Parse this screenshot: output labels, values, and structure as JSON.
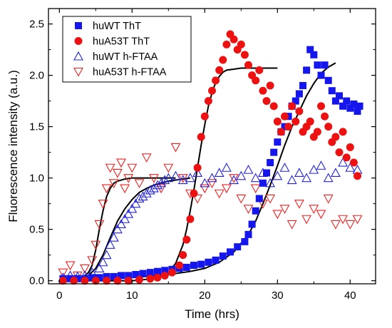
{
  "chart_data": {
    "type": "scatter",
    "xlabel": "Time (hrs)",
    "ylabel": "Fluorescence intensity (a.u.)",
    "xlim": [
      -1.5,
      43.5
    ],
    "ylim": [
      -0.03,
      2.65
    ],
    "xticks": [
      0,
      10,
      20,
      30,
      40
    ],
    "yticks": [
      0.0,
      0.5,
      1.0,
      1.5,
      2.0,
      2.5
    ],
    "xtick_labels": [
      "0",
      "10",
      "20",
      "30",
      "40"
    ],
    "ytick_labels": [
      "0.0",
      "0.5",
      "1.0",
      "1.5",
      "2.0",
      "2.5"
    ],
    "legend_position": "top-left",
    "grid": false,
    "series": [
      {
        "name": "huWT ThT",
        "marker": "square",
        "color": "#1515ee",
        "x": [
          0.5,
          1.5,
          2.5,
          3.5,
          4.5,
          5.5,
          6.5,
          7.5,
          8.5,
          9.5,
          10.5,
          11.5,
          12.5,
          13.5,
          14.5,
          15.5,
          16.5,
          17.5,
          18.5,
          19.5,
          20.5,
          21.5,
          22.5,
          23.5,
          24.5,
          25.5,
          26,
          26.5,
          27,
          27.5,
          28,
          28.5,
          29,
          29.5,
          30,
          30.5,
          31,
          31.5,
          32,
          32.5,
          33,
          33.5,
          34,
          34.5,
          35,
          35.5,
          36,
          36.5,
          37,
          37.5,
          38,
          38.5,
          39,
          39.5,
          40,
          40.5,
          41,
          41.3
        ],
        "y": [
          0.02,
          0.02,
          0.02,
          0.02,
          0.03,
          0.03,
          0.04,
          0.04,
          0.05,
          0.05,
          0.06,
          0.07,
          0.08,
          0.09,
          0.1,
          0.11,
          0.12,
          0.13,
          0.15,
          0.16,
          0.18,
          0.2,
          0.24,
          0.28,
          0.33,
          0.38,
          0.45,
          0.55,
          0.68,
          0.8,
          0.95,
          1.05,
          1.15,
          1.25,
          1.35,
          1.45,
          1.5,
          1.6,
          1.7,
          1.75,
          1.82,
          1.9,
          2.05,
          2.25,
          2.2,
          2.1,
          2.0,
          2.1,
          1.95,
          1.85,
          1.75,
          1.8,
          1.7,
          1.75,
          1.68,
          1.72,
          1.65,
          1.7
        ]
      },
      {
        "name": "huA53T ThT",
        "marker": "circle",
        "color": "#ee1111",
        "x": [
          0.5,
          2,
          3.5,
          5,
          6.5,
          8,
          9.5,
          11,
          12.5,
          13.5,
          14.5,
          15.5,
          16.5,
          17,
          17.5,
          18,
          18.5,
          19,
          19.5,
          20,
          20.5,
          21,
          21.5,
          22,
          22.5,
          23,
          23.5,
          24,
          24.5,
          25,
          25.5,
          26,
          26.5,
          27,
          27.5,
          28,
          28.5,
          29,
          29.5,
          30,
          30.5,
          31,
          31.5,
          32,
          32.5,
          33,
          33.5,
          34,
          34.5,
          35,
          35.5,
          36,
          36.5,
          37,
          37.5,
          38,
          38.5,
          39,
          39.5,
          40,
          40.5,
          41
        ],
        "y": [
          0.0,
          0.0,
          0.0,
          0.0,
          0.0,
          0.0,
          0.0,
          0.01,
          0.02,
          0.03,
          0.05,
          0.08,
          0.15,
          0.25,
          0.4,
          0.6,
          0.85,
          1.1,
          1.4,
          1.6,
          1.75,
          1.85,
          1.95,
          2.05,
          2.15,
          2.3,
          2.4,
          2.35,
          2.25,
          2.3,
          2.2,
          2.1,
          2.0,
          1.95,
          2.05,
          1.85,
          1.75,
          1.9,
          1.7,
          1.55,
          1.45,
          1.6,
          1.5,
          1.7,
          1.55,
          1.65,
          1.45,
          1.5,
          1.55,
          1.4,
          1.45,
          1.7,
          1.6,
          1.5,
          1.35,
          1.4,
          1.25,
          1.45,
          1.2,
          1.3,
          1.15,
          1.02
        ]
      },
      {
        "name": "huWT h-FTAA",
        "marker": "triangle-up",
        "color": "#2222dd",
        "x": [
          0.5,
          1.5,
          2.5,
          3.5,
          4.5,
          5.5,
          6,
          6.5,
          7,
          7.5,
          8,
          8.5,
          9,
          9.5,
          10,
          10.5,
          11,
          11.5,
          12,
          12.5,
          13,
          13.5,
          14,
          14.5,
          15,
          16,
          17,
          18,
          19,
          20,
          21,
          22,
          23,
          24,
          25,
          26,
          27,
          28,
          29,
          30,
          31,
          32,
          33,
          34,
          35,
          36,
          37,
          38,
          39,
          40,
          41
        ],
        "y": [
          0.03,
          0.05,
          0.04,
          0.05,
          0.08,
          0.12,
          0.18,
          0.25,
          0.35,
          0.42,
          0.5,
          0.55,
          0.6,
          0.65,
          0.7,
          0.75,
          0.8,
          0.82,
          0.85,
          0.88,
          0.9,
          0.93,
          0.95,
          0.98,
          1.0,
          1.02,
          0.98,
          1.0,
          1.05,
          0.95,
          1.0,
          1.05,
          1.1,
          0.98,
          1.02,
          1.08,
          1.0,
          1.05,
          0.95,
          1.02,
          1.1,
          0.98,
          1.05,
          1.0,
          1.08,
          1.12,
          1.0,
          1.05,
          1.15,
          1.1,
          1.08
        ]
      },
      {
        "name": "huA53T h-FTAA",
        "marker": "triangle-down",
        "color": "#ee2222",
        "x": [
          0.5,
          1.5,
          2.5,
          3.5,
          4.5,
          5,
          5.5,
          6,
          6.5,
          7,
          7.5,
          8,
          8.5,
          9,
          9.5,
          10,
          11,
          12,
          13,
          14,
          15,
          16,
          17,
          18,
          19,
          20,
          21,
          22,
          23,
          24,
          25,
          26,
          27,
          28,
          29,
          30,
          31,
          32,
          33,
          34,
          35,
          36,
          37,
          38,
          39,
          40,
          41
        ],
        "y": [
          0.08,
          0.15,
          0.05,
          0.12,
          0.2,
          0.35,
          0.55,
          0.75,
          0.9,
          1.1,
          0.95,
          1.05,
          1.15,
          0.9,
          1.0,
          1.1,
          0.95,
          1.2,
          1.0,
          0.9,
          1.1,
          1.3,
          1.0,
          0.85,
          0.8,
          0.9,
          0.95,
          0.85,
          0.9,
          1.0,
          0.8,
          0.7,
          0.9,
          0.75,
          0.8,
          0.65,
          0.7,
          0.55,
          0.75,
          0.6,
          0.7,
          0.65,
          0.8,
          0.55,
          0.6,
          0.55,
          0.6
        ]
      }
    ],
    "fits": [
      {
        "for": "huWT ThT",
        "x": [
          10,
          15,
          18,
          20,
          22,
          24,
          26,
          27,
          28,
          29,
          30,
          31,
          32,
          33,
          34,
          35,
          36,
          37,
          38
        ],
        "y": [
          0.03,
          0.06,
          0.09,
          0.12,
          0.18,
          0.28,
          0.45,
          0.58,
          0.75,
          0.93,
          1.12,
          1.32,
          1.5,
          1.65,
          1.8,
          1.92,
          2.02,
          2.08,
          2.12
        ]
      },
      {
        "for": "huA53T ThT",
        "x": [
          0,
          10,
          13,
          15,
          16,
          17,
          17.5,
          18,
          18.5,
          19,
          19.5,
          20,
          20.5,
          21,
          21.5,
          22,
          22.5,
          23,
          24,
          25,
          27,
          30
        ],
        "y": [
          0.0,
          0.0,
          0.02,
          0.08,
          0.17,
          0.35,
          0.5,
          0.68,
          0.88,
          1.1,
          1.32,
          1.52,
          1.7,
          1.83,
          1.93,
          1.99,
          2.03,
          2.05,
          2.06,
          2.07,
          2.07,
          2.07
        ]
      },
      {
        "for": "huWT h-FTAA",
        "x": [
          0,
          3,
          4,
          5,
          6,
          7,
          8,
          9,
          10,
          11,
          12,
          13,
          14,
          15,
          16,
          17,
          18
        ],
        "y": [
          0.0,
          0.02,
          0.05,
          0.12,
          0.25,
          0.42,
          0.58,
          0.7,
          0.79,
          0.86,
          0.9,
          0.93,
          0.95,
          0.97,
          0.98,
          0.99,
          1.0
        ]
      },
      {
        "for": "huA53T h-FTAA",
        "x": [
          0,
          3,
          4,
          4.5,
          5,
          5.5,
          6,
          6.5,
          7,
          7.5,
          8,
          9,
          10,
          12,
          14,
          16
        ],
        "y": [
          0.0,
          0.02,
          0.08,
          0.15,
          0.3,
          0.5,
          0.68,
          0.82,
          0.9,
          0.95,
          0.97,
          0.99,
          1.0,
          1.0,
          1.0,
          1.0
        ]
      }
    ]
  }
}
